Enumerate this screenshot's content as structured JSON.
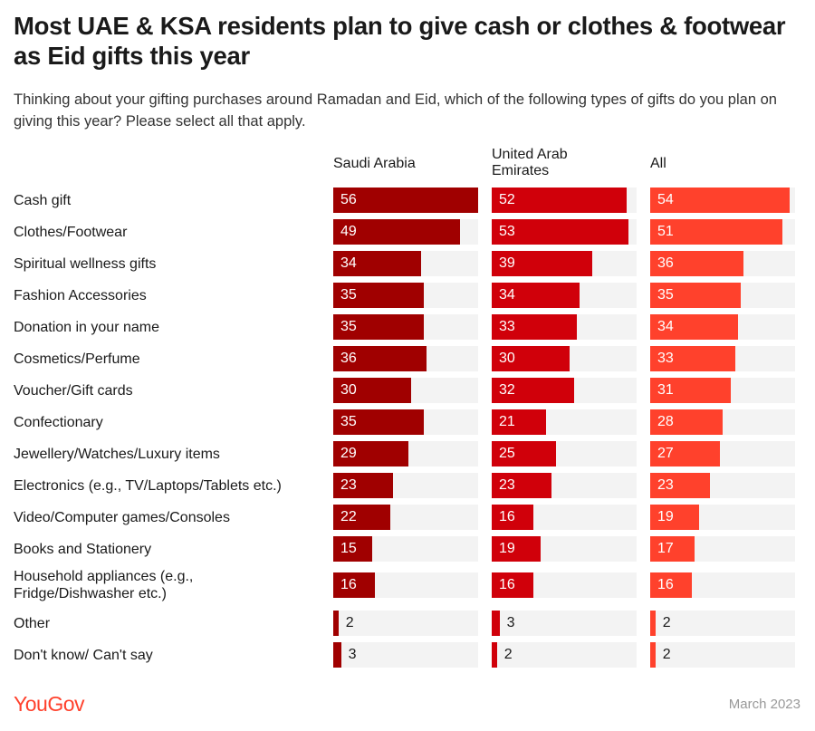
{
  "title": "Most UAE & KSA residents plan to give cash or clothes & footwear as Eid gifts this year",
  "subtitle": "Thinking about your gifting purchases around Ramadan and Eid, which of the following types of gifts do you plan on giving this year? Please select all that apply.",
  "logo": "YouGov",
  "date": "March 2023",
  "chart_data": {
    "type": "bar",
    "orientation": "horizontal",
    "xlim": [
      0,
      56
    ],
    "categories": [
      "Cash gift",
      "Clothes/Footwear",
      "Spiritual wellness gifts",
      "Fashion Accessories",
      "Donation in your name",
      "Cosmetics/Perfume",
      "Voucher/Gift cards",
      "Confectionary",
      "Jewellery/Watches/Luxury items",
      "Electronics (e.g., TV/Laptops/Tablets etc.)",
      "Video/Computer games/Consoles",
      "Books and Stationery",
      "Household appliances (e.g., Fridge/Dishwasher etc.)",
      "Other",
      "Don't know/ Can't say"
    ],
    "series": [
      {
        "name": "Saudi Arabia",
        "color": "#a00000",
        "values": [
          56,
          49,
          34,
          35,
          35,
          36,
          30,
          35,
          29,
          23,
          22,
          15,
          16,
          2,
          3
        ]
      },
      {
        "name": "United Arab Emirates",
        "color": "#d0000a",
        "values": [
          52,
          53,
          39,
          34,
          33,
          30,
          32,
          21,
          25,
          23,
          16,
          19,
          16,
          3,
          2
        ]
      },
      {
        "name": "All",
        "color": "#ff412c",
        "values": [
          54,
          51,
          36,
          35,
          34,
          33,
          31,
          28,
          27,
          23,
          19,
          17,
          16,
          2,
          2
        ]
      }
    ]
  }
}
